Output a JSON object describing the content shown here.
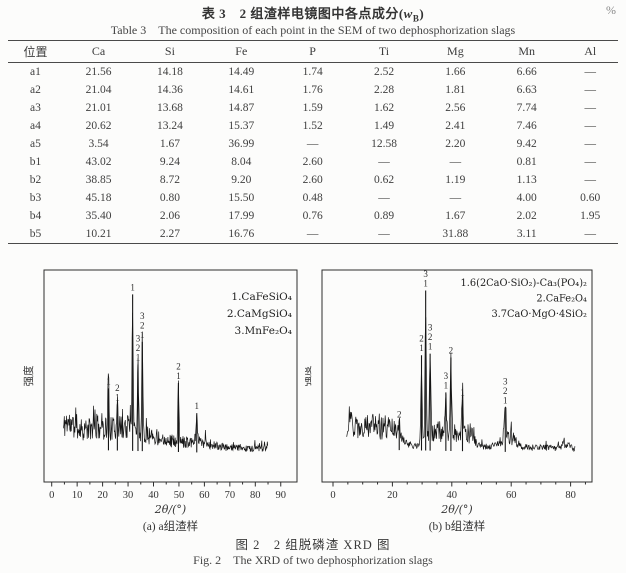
{
  "page": {
    "percent_label": "%"
  },
  "table": {
    "title_cn": {
      "prefix": "表 3　2 组渣样电镜图中各点成分(",
      "symbol": "w",
      "subscript": "B",
      "suffix": ")"
    },
    "title_en": "Table 3　The composition of each point in the SEM of two dephosphorization slags",
    "columns": [
      "位置",
      "Ca",
      "Si",
      "Fe",
      "P",
      "Ti",
      "Mg",
      "Mn",
      "Al"
    ],
    "rows": [
      [
        "a1",
        "21.56",
        "14.18",
        "14.49",
        "1.74",
        "2.52",
        "1.66",
        "6.66",
        "—"
      ],
      [
        "a2",
        "21.04",
        "14.36",
        "14.61",
        "1.76",
        "2.28",
        "1.81",
        "6.63",
        "—"
      ],
      [
        "a3",
        "21.01",
        "13.68",
        "14.87",
        "1.59",
        "1.62",
        "2.56",
        "7.74",
        "—"
      ],
      [
        "a4",
        "20.62",
        "13.24",
        "15.37",
        "1.52",
        "1.49",
        "2.41",
        "7.46",
        "—"
      ],
      [
        "a5",
        "3.54",
        "1.67",
        "36.99",
        "—",
        "12.58",
        "2.20",
        "9.42",
        "—"
      ],
      [
        "b1",
        "43.02",
        "9.24",
        "8.04",
        "2.60",
        "—",
        "—",
        "0.81",
        "—"
      ],
      [
        "b2",
        "38.85",
        "8.72",
        "9.20",
        "2.60",
        "0.62",
        "1.19",
        "1.13",
        "—"
      ],
      [
        "b3",
        "45.18",
        "0.80",
        "15.50",
        "0.48",
        "—",
        "—",
        "4.00",
        "0.60"
      ],
      [
        "b4",
        "35.40",
        "2.06",
        "17.99",
        "0.76",
        "0.89",
        "1.67",
        "2.02",
        "1.95"
      ],
      [
        "b5",
        "10.21",
        "2.27",
        "16.76",
        "—",
        "—",
        "31.88",
        "3.11",
        "—"
      ]
    ]
  },
  "figure": {
    "caption_cn": "图 2　2 组脱磷渣 XRD 图",
    "caption_en": "Fig. 2　The XRD of two dephosphorization slags"
  },
  "chart_data": [
    {
      "type": "line",
      "subtype": "xrd-pattern",
      "title": "(a) a组渣样",
      "xlabel": "2θ/(°)",
      "ylabel": "强度",
      "xlim": [
        0,
        90
      ],
      "x_major_ticks": [
        0,
        10,
        20,
        30,
        40,
        50,
        60,
        70,
        80,
        90
      ],
      "x_minor_step": 5,
      "scan_range": [
        4.6,
        85
      ],
      "legend": [
        "1.CaFeSiO₄",
        "2.CaMgSiO₄",
        "3.MnFe₂O₄"
      ],
      "legend_pos": "top-right",
      "grid": false,
      "y_ticks_labeled": false,
      "peaks": [
        {
          "two_theta": 22.3,
          "rel_intensity": 0.36,
          "labels": [
            "1"
          ]
        },
        {
          "two_theta": 25.8,
          "rel_intensity": 0.27,
          "labels": [
            "2",
            "1"
          ]
        },
        {
          "two_theta": 31.8,
          "rel_intensity": 0.9,
          "labels": [
            "1"
          ]
        },
        {
          "two_theta": 33.9,
          "rel_intensity": 0.5,
          "labels": [
            "3",
            "2",
            "1"
          ]
        },
        {
          "two_theta": 35.6,
          "rel_intensity": 0.63,
          "labels": [
            "3",
            "2",
            "1"
          ]
        },
        {
          "two_theta": 49.8,
          "rel_intensity": 0.4,
          "labels": [
            "2",
            "1"
          ]
        },
        {
          "two_theta": 57.0,
          "rel_intensity": 0.23,
          "labels": [
            "1"
          ]
        }
      ],
      "background": {
        "seed": 11,
        "base": 0.055,
        "humps": [
          {
            "c": 5.6,
            "w": 1.2,
            "h": 0.11
          },
          {
            "c": 8.5,
            "w": 3.0,
            "h": 0.1
          },
          {
            "c": 14.0,
            "w": 5.0,
            "h": 0.09
          },
          {
            "c": 20.0,
            "w": 3.5,
            "h": 0.1
          },
          {
            "c": 30.0,
            "w": 5.0,
            "h": 0.16
          },
          {
            "c": 41.0,
            "w": 4.0,
            "h": 0.05
          },
          {
            "c": 50.0,
            "w": 8.0,
            "h": 0.035
          },
          {
            "c": 58.0,
            "w": 4.0,
            "h": 0.035
          }
        ]
      }
    },
    {
      "type": "line",
      "subtype": "xrd-pattern",
      "title": "(b) b组渣样",
      "xlabel": "2θ/(°)",
      "ylabel": "强度",
      "xlim": [
        0,
        87
      ],
      "x_major_ticks": [
        0,
        20,
        40,
        60,
        80
      ],
      "x_minor_step": 5,
      "scan_range": [
        4.6,
        81.5
      ],
      "legend": [
        "1.6(2CaO·SiO₂)-Ca₃(PO₄)₂",
        "2.CaFe₂O₄",
        "3.7CaO·MgO·4SiO₂"
      ],
      "legend_pos": "top-right",
      "grid": false,
      "y_ticks_labeled": false,
      "peaks": [
        {
          "two_theta": 22.3,
          "rel_intensity": 0.17,
          "labels": [
            "2"
          ]
        },
        {
          "two_theta": 29.8,
          "rel_intensity": 0.55,
          "labels": [
            "2",
            "1"
          ]
        },
        {
          "two_theta": 31.2,
          "rel_intensity": 0.92,
          "labels": [
            "3",
            "1"
          ]
        },
        {
          "two_theta": 32.7,
          "rel_intensity": 0.56,
          "labels": [
            "3",
            "2",
            "1"
          ]
        },
        {
          "two_theta": 38.0,
          "rel_intensity": 0.34,
          "labels": [
            "3",
            "1"
          ]
        },
        {
          "two_theta": 39.7,
          "rel_intensity": 0.54,
          "labels": [
            "2"
          ]
        },
        {
          "two_theta": 43.6,
          "rel_intensity": 0.3,
          "labels": [
            "1"
          ]
        },
        {
          "two_theta": 58.0,
          "rel_intensity": 0.26,
          "labels": [
            "3",
            "2",
            "1"
          ]
        }
      ],
      "background": {
        "seed": 29,
        "base": 0.05,
        "humps": [
          {
            "c": 6.0,
            "w": 1.5,
            "h": 0.1
          },
          {
            "c": 10.5,
            "w": 5.0,
            "h": 0.11
          },
          {
            "c": 16.0,
            "w": 4.0,
            "h": 0.1
          },
          {
            "c": 20.5,
            "w": 2.0,
            "h": 0.06
          },
          {
            "c": 33.8,
            "w": 1.8,
            "h": 0.13
          },
          {
            "c": 37.0,
            "w": 1.2,
            "h": 0.08
          },
          {
            "c": 42.0,
            "w": 2.5,
            "h": 0.13
          },
          {
            "c": 46.5,
            "w": 1.5,
            "h": 0.08
          },
          {
            "c": 58.5,
            "w": 2.5,
            "h": 0.1
          },
          {
            "c": 78.0,
            "w": 1.0,
            "h": 0.045
          }
        ]
      }
    }
  ]
}
